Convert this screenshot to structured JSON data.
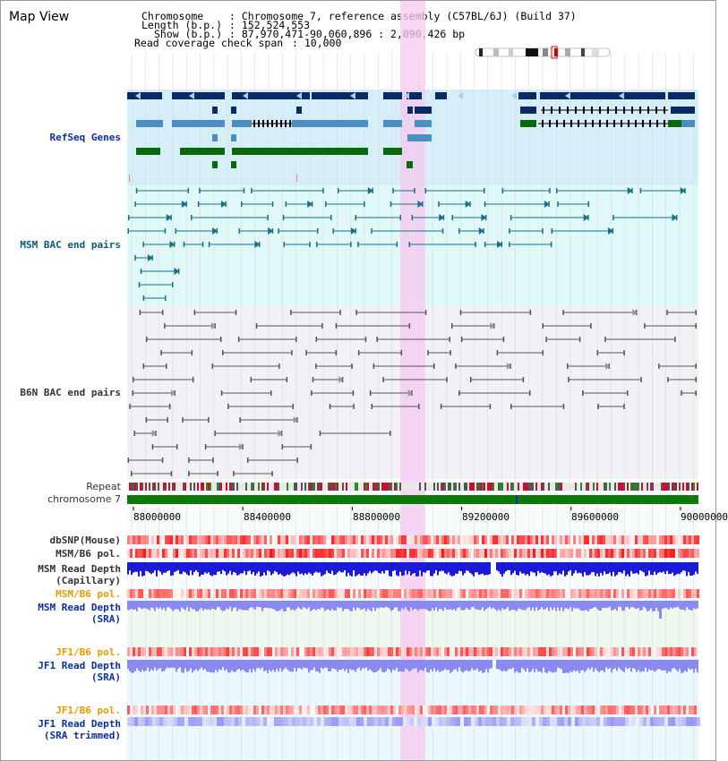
{
  "title": "Map View",
  "header": {
    "chromosome_key": "Chromosome",
    "chromosome_val": ": Chromosome 7, reference assembly (C57BL/6J) (Build 37)",
    "length_key": "Length (b.p.)",
    "length_val": ": 152,524,553",
    "show_key": "Show (b.p.)",
    "show_val": ": 87,970,471-90,060,896 : 2,090,426 bp",
    "span_key": "Read coverage check span",
    "span_val": ": 10,000"
  },
  "tracks": {
    "refseq": "RefSeq Genes",
    "msm_bac": "MSM BAC end pairs",
    "b6n_bac": "B6N BAC end pairs",
    "repeat": "Repeat",
    "chromosome": "chromosome 7",
    "dbsnp": "dbSNP(Mouse)",
    "msm_b6_pol_1": "MSM/B6 pol.",
    "msm_read_depth_cap_1": "MSM Read Depth",
    "msm_read_depth_cap_2": "(Capillary)",
    "msm_b6_pol_2": "MSM/B6 pol.",
    "msm_read_depth_sra_1": "MSM Read Depth",
    "msm_read_depth_sra_2": "(SRA)",
    "jf1_b6_pol_1": "JF1/B6 pol.",
    "jf1_read_depth_sra_1": "JF1 Read Depth",
    "jf1_read_depth_sra_2": "(SRA)",
    "jf1_b6_pol_2": "JF1/B6 pol.",
    "jf1_read_depth_trim_1": "JF1 Read Depth",
    "jf1_read_depth_trim_2": "(SRA trimmed)"
  },
  "axis": {
    "ticks": [
      "88000000",
      "88400000",
      "88800000",
      "89200000",
      "89600000",
      "90000000"
    ]
  },
  "colors": {
    "refseq_bg": "#d6eef8",
    "msm_bac_bg": "#e0f8f8",
    "b6n_bac_bg": "#f2f2f6",
    "highlight": "#f5c8f0",
    "gene_dark": "#0a2a66",
    "gene_light": "#4a8fbf",
    "gene_green": "#0a6a0a",
    "msm_line": "#1a6f8a",
    "b6n_line": "#555555",
    "chrom_green": "#0a7a0a",
    "snp_red": "#e83030",
    "depth_blue": "#1a1ad8",
    "depth_light": "#8a8af0"
  }
}
